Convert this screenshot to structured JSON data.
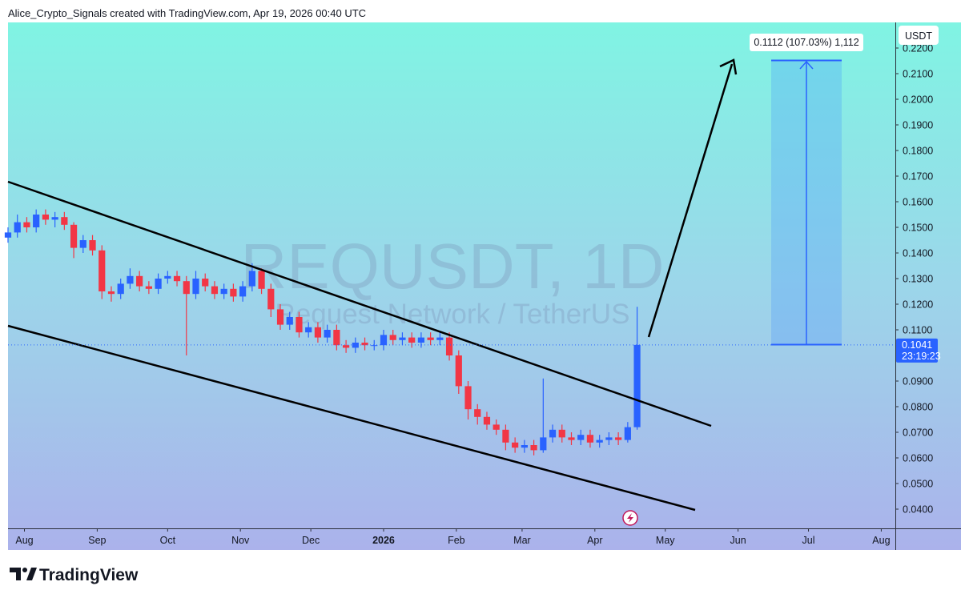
{
  "header": "Alice_Crypto_Signals created with TradingView.com, Apr 19, 2026 00:40 UTC",
  "footer": "TradingView",
  "chart_data": {
    "type": "candlestick",
    "title": "REQUSDT, 1D",
    "subtitle": "Request Network / TetherUS",
    "currency": "USDT",
    "last_price": 0.1041,
    "countdown": "23:19:23",
    "measure_label": "0.1112 (107.03%) 1,112",
    "up_color": "#2962ff",
    "down_color": "#f23645",
    "xlim": [
      -7,
      371
    ],
    "ylim": [
      0.0325,
      0.23
    ],
    "xticks": [
      {
        "value": 0,
        "label": "Aug"
      },
      {
        "value": 31,
        "label": "Sep"
      },
      {
        "value": 61,
        "label": "Oct"
      },
      {
        "value": 92,
        "label": "Nov"
      },
      {
        "value": 122,
        "label": "Dec"
      },
      {
        "value": 153,
        "label": "2026"
      },
      {
        "value": 184,
        "label": "Feb"
      },
      {
        "value": 212,
        "label": "Mar"
      },
      {
        "value": 243,
        "label": "Apr"
      },
      {
        "value": 273,
        "label": "May"
      },
      {
        "value": 304,
        "label": "Jun"
      },
      {
        "value": 334,
        "label": "Jul"
      },
      {
        "value": 365,
        "label": "Aug"
      }
    ],
    "yticks": [
      {
        "value": 0.04,
        "label": "0.0400"
      },
      {
        "value": 0.05,
        "label": "0.0500"
      },
      {
        "value": 0.06,
        "label": "0.0600"
      },
      {
        "value": 0.07,
        "label": "0.0700"
      },
      {
        "value": 0.08,
        "label": "0.0800"
      },
      {
        "value": 0.09,
        "label": "0.0900"
      },
      {
        "value": 0.1,
        "label": "0.1000"
      },
      {
        "value": 0.11,
        "label": "0.1100"
      },
      {
        "value": 0.12,
        "label": "0.1200"
      },
      {
        "value": 0.13,
        "label": "0.1300"
      },
      {
        "value": 0.14,
        "label": "0.1400"
      },
      {
        "value": 0.15,
        "label": "0.1500"
      },
      {
        "value": 0.16,
        "label": "0.1600"
      },
      {
        "value": 0.17,
        "label": "0.1700"
      },
      {
        "value": 0.18,
        "label": "0.1800"
      },
      {
        "value": 0.19,
        "label": "0.1900"
      },
      {
        "value": 0.2,
        "label": "0.2000"
      },
      {
        "value": 0.21,
        "label": "0.2100"
      },
      {
        "value": 0.22,
        "label": "0.2200"
      }
    ],
    "x": [
      -7,
      -3,
      1,
      5,
      9,
      13,
      17,
      21,
      25,
      29,
      33,
      37,
      41,
      45,
      49,
      53,
      57,
      61,
      65,
      69,
      73,
      77,
      81,
      85,
      89,
      93,
      97,
      101,
      105,
      109,
      113,
      117,
      121,
      125,
      129,
      133,
      137,
      141,
      145,
      149,
      153,
      157,
      161,
      165,
      169,
      173,
      177,
      181,
      185,
      189,
      193,
      197,
      201,
      205,
      209,
      213,
      217,
      221,
      225,
      229,
      233,
      237,
      241,
      245,
      249,
      253,
      257,
      261
    ],
    "open": [
      0.146,
      0.148,
      0.152,
      0.15,
      0.155,
      0.153,
      0.154,
      0.151,
      0.142,
      0.145,
      0.141,
      0.125,
      0.124,
      0.128,
      0.131,
      0.127,
      0.126,
      0.13,
      0.131,
      0.129,
      0.124,
      0.13,
      0.127,
      0.124,
      0.126,
      0.123,
      0.127,
      0.133,
      0.126,
      0.118,
      0.112,
      0.115,
      0.109,
      0.111,
      0.107,
      0.11,
      0.104,
      0.103,
      0.105,
      0.104,
      0.104,
      0.108,
      0.106,
      0.107,
      0.105,
      0.107,
      0.106,
      0.107,
      0.1,
      0.088,
      0.079,
      0.076,
      0.073,
      0.071,
      0.066,
      0.064,
      0.065,
      0.063,
      0.068,
      0.071,
      0.068,
      0.067,
      0.069,
      0.066,
      0.067,
      0.068,
      0.067,
      0.072
    ],
    "high": [
      0.15,
      0.155,
      0.154,
      0.157,
      0.157,
      0.156,
      0.156,
      0.152,
      0.147,
      0.147,
      0.143,
      0.127,
      0.13,
      0.134,
      0.133,
      0.129,
      0.132,
      0.133,
      0.133,
      0.131,
      0.133,
      0.132,
      0.129,
      0.128,
      0.128,
      0.129,
      0.136,
      0.134,
      0.128,
      0.12,
      0.117,
      0.117,
      0.113,
      0.113,
      0.112,
      0.112,
      0.106,
      0.107,
      0.107,
      0.106,
      0.11,
      0.11,
      0.109,
      0.109,
      0.109,
      0.109,
      0.109,
      0.109,
      0.102,
      0.09,
      0.081,
      0.078,
      0.075,
      0.073,
      0.068,
      0.067,
      0.067,
      0.091,
      0.073,
      0.073,
      0.07,
      0.071,
      0.071,
      0.069,
      0.07,
      0.07,
      0.074,
      0.119
    ],
    "low": [
      0.144,
      0.146,
      0.148,
      0.148,
      0.151,
      0.15,
      0.149,
      0.138,
      0.14,
      0.139,
      0.122,
      0.121,
      0.122,
      0.126,
      0.125,
      0.124,
      0.124,
      0.128,
      0.127,
      0.1,
      0.122,
      0.125,
      0.122,
      0.122,
      0.121,
      0.121,
      0.125,
      0.124,
      0.115,
      0.11,
      0.11,
      0.107,
      0.107,
      0.105,
      0.105,
      0.102,
      0.101,
      0.101,
      0.102,
      0.102,
      0.102,
      0.104,
      0.104,
      0.103,
      0.103,
      0.104,
      0.104,
      0.098,
      0.085,
      0.075,
      0.073,
      0.071,
      0.069,
      0.063,
      0.062,
      0.062,
      0.061,
      0.062,
      0.066,
      0.066,
      0.065,
      0.065,
      0.064,
      0.064,
      0.065,
      0.065,
      0.066,
      0.071
    ],
    "close": [
      0.148,
      0.152,
      0.15,
      0.155,
      0.153,
      0.154,
      0.151,
      0.142,
      0.145,
      0.141,
      0.125,
      0.124,
      0.128,
      0.131,
      0.127,
      0.126,
      0.13,
      0.131,
      0.129,
      0.124,
      0.13,
      0.127,
      0.124,
      0.126,
      0.123,
      0.127,
      0.133,
      0.126,
      0.118,
      0.112,
      0.115,
      0.109,
      0.111,
      0.107,
      0.11,
      0.104,
      0.103,
      0.105,
      0.104,
      0.104,
      0.108,
      0.106,
      0.107,
      0.105,
      0.107,
      0.106,
      0.107,
      0.1,
      0.088,
      0.079,
      0.076,
      0.073,
      0.071,
      0.066,
      0.064,
      0.065,
      0.063,
      0.068,
      0.071,
      0.068,
      0.067,
      0.069,
      0.066,
      0.067,
      0.068,
      0.067,
      0.072,
      0.1041
    ]
  }
}
